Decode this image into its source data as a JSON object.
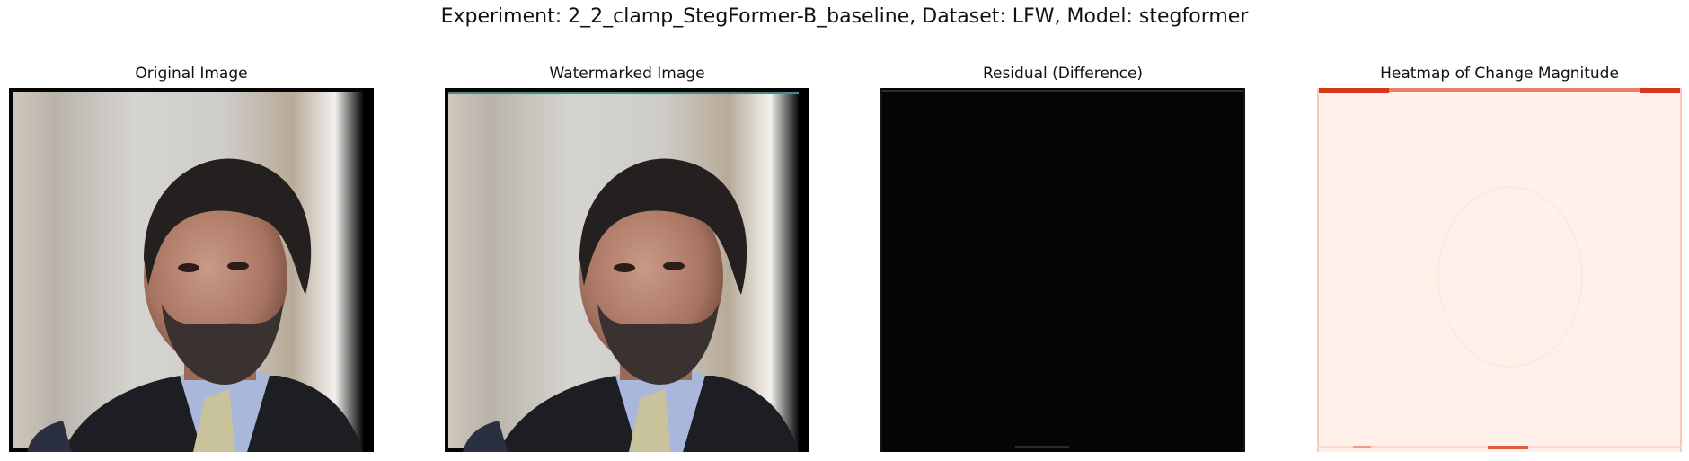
{
  "figure": {
    "suptitle": "Experiment: 2_2_clamp_StegFormer-B_baseline, Dataset: LFW, Model: stegformer"
  },
  "panels": [
    {
      "title": "Original Image"
    },
    {
      "title": "Watermarked Image"
    },
    {
      "title": "Residual (Difference)"
    },
    {
      "title": "Heatmap of Change Magnitude"
    }
  ],
  "colors": {
    "residual_background": "#050505",
    "heatmap_background": "#fff0ea",
    "heatmap_edge": "#d9341c"
  }
}
